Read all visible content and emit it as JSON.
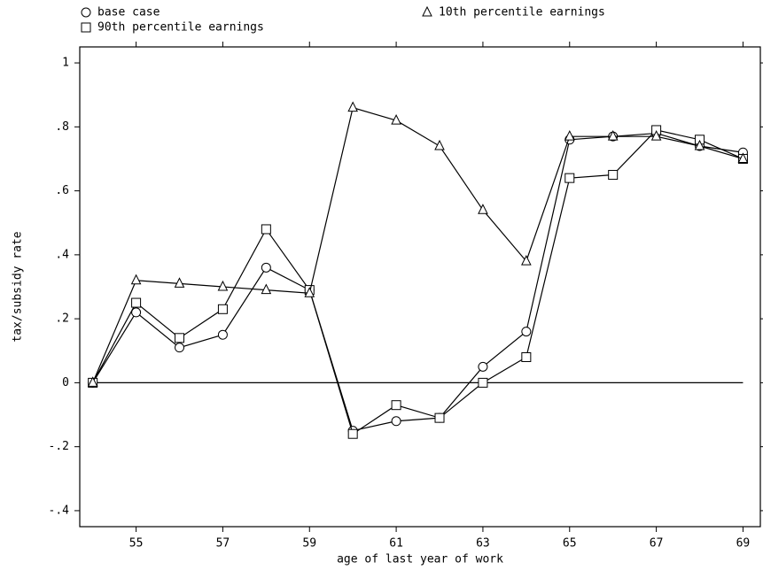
{
  "chart_data": {
    "type": "line",
    "y_label": "tax/subsidy rate",
    "x_label": "age of last year of work",
    "x": [
      54,
      55,
      56,
      57,
      58,
      59,
      60,
      61,
      62,
      63,
      64,
      65,
      66,
      67,
      68,
      69
    ],
    "series": [
      {
        "name": "base case",
        "color": "#000000",
        "marker": "circle",
        "values": [
          0,
          0.22,
          0.11,
          0.15,
          0.36,
          0.29,
          -0.15,
          -0.12,
          -0.11,
          0.05,
          0.16,
          0.76,
          0.77,
          0.78,
          0.74,
          0.72
        ]
      },
      {
        "name": "90th percentile earnings",
        "color": "#000000",
        "marker": "square",
        "values": [
          0,
          0.25,
          0.14,
          0.23,
          0.48,
          0.29,
          -0.16,
          -0.07,
          -0.11,
          0.0,
          0.08,
          0.64,
          0.65,
          0.79,
          0.76,
          0.7
        ]
      },
      {
        "name": "10th percentile earnings",
        "color": "#000000",
        "marker": "triangle",
        "values": [
          0,
          0.32,
          0.31,
          0.3,
          0.29,
          0.28,
          0.86,
          0.82,
          0.74,
          0.54,
          0.38,
          0.77,
          0.77,
          0.77,
          0.74,
          0.7
        ]
      }
    ],
    "xlim": [
      53.7,
      69.4
    ],
    "ylim": [
      -0.45,
      1.05
    ],
    "xticks": [
      55,
      57,
      59,
      61,
      63,
      65,
      67,
      69
    ],
    "yticks": [
      {
        "value": -0.4,
        "label": "-.4"
      },
      {
        "value": -0.2,
        "label": "-.2"
      },
      0,
      {
        "value": 0.2,
        "label": ".2"
      },
      {
        "value": 0.4,
        "label": ".4"
      },
      {
        "value": 0.6,
        "label": ".6"
      },
      {
        "value": 0.8,
        "label": ".8"
      },
      1
    ],
    "zero_line": true
  }
}
